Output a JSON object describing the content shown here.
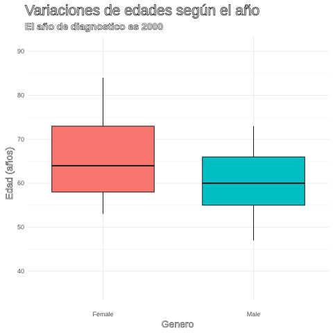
{
  "chart_data": {
    "type": "boxplot",
    "title": "Variaciones de edades según el año",
    "subtitle": "El año de diagnostico es 2000",
    "xlabel": "Genero",
    "ylabel": "Edad (años)",
    "categories": [
      "Female",
      "Male"
    ],
    "ylim": [
      33.5,
      93.5
    ],
    "yticks": [
      40,
      50,
      60,
      70,
      80,
      90
    ],
    "grid": true,
    "boxes": [
      {
        "category": "Female",
        "min": 53,
        "q1": 58,
        "median": 64,
        "q3": 73,
        "max": 84,
        "color": "#F8766D"
      },
      {
        "category": "Male",
        "min": 47,
        "q1": 55,
        "median": 60,
        "q3": 66,
        "max": 73,
        "color": "#00BFC4"
      }
    ]
  }
}
